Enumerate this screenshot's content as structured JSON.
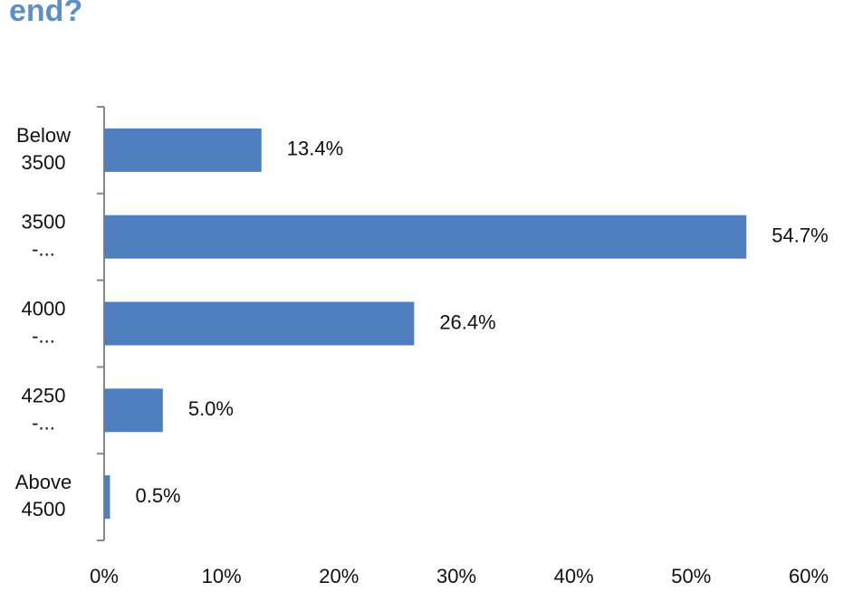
{
  "chart_data": {
    "type": "bar",
    "orientation": "horizontal",
    "title": "end?",
    "categories": [
      "Below\n3500",
      "3500\n-...",
      "4000\n-...",
      "4250\n-...",
      "Above\n4500"
    ],
    "values": [
      13.4,
      54.7,
      26.4,
      5.0,
      0.5
    ],
    "value_labels": [
      "13.4%",
      "54.7%",
      "26.4%",
      "5.0%",
      "0.5%"
    ],
    "color": "#4f7fbe",
    "xlim": [
      0,
      60
    ],
    "xticks": [
      {
        "value": 0,
        "label": "0%"
      },
      {
        "value": 10,
        "label": "10%"
      },
      {
        "value": 20,
        "label": "20%"
      },
      {
        "value": 30,
        "label": "30%"
      },
      {
        "value": 40,
        "label": "40%"
      },
      {
        "value": 50,
        "label": "50%"
      },
      {
        "value": 60,
        "label": "60%"
      }
    ],
    "grid": false
  }
}
